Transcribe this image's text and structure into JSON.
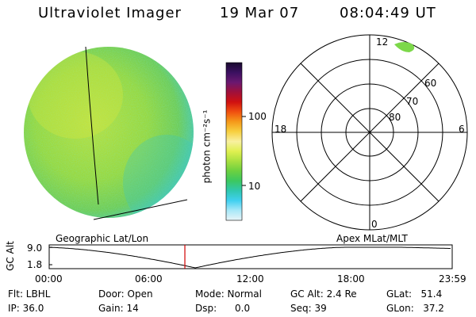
{
  "header": {
    "instrument": "Ultraviolet Imager",
    "date": "19 Mar 07",
    "time": "08:04:49 UT"
  },
  "colorbar": {
    "unit_label": "photon cm⁻²s⁻¹",
    "ticks": [
      {
        "label": "100",
        "value": 100
      },
      {
        "label": "10",
        "value": 10
      }
    ],
    "colors": [
      "#1a0a2e",
      "#3b1060",
      "#6a1870",
      "#a0103a",
      "#d01010",
      "#f05010",
      "#f59a1a",
      "#f7d040",
      "#f8f0a0",
      "#e0f050",
      "#a8e040",
      "#6cd040",
      "#3cc860",
      "#30c8b0",
      "#40d0f0",
      "#a8e8f8",
      "#e8f4f8"
    ]
  },
  "left_panel": {
    "label": "Geographic Lat/Lon"
  },
  "right_panel": {
    "label": "Apex MLat/MLT",
    "mlt_labels": [
      {
        "label": "12",
        "pos": "top"
      },
      {
        "label": "18",
        "pos": "left"
      },
      {
        "label": "6",
        "pos": "right"
      },
      {
        "label": "0",
        "pos": "bottom"
      }
    ],
    "lat_labels": [
      "60",
      "70",
      "80"
    ]
  },
  "timeline": {
    "y_axis_label": "GC Alt",
    "y_ticks": [
      "9.0",
      "1.8"
    ],
    "x_ticks": [
      "00:00",
      "06:00",
      "12:00",
      "18:00",
      "23:59"
    ],
    "current_time_hours": 8.08
  },
  "footer": {
    "flt": "Flt: LBHL",
    "ip": "IP: 36.0",
    "door": "Door: Open",
    "gain": "Gain: 14",
    "mode": "Mode: Normal",
    "dsp": "Dsp:      0.0",
    "gcalt": "GC Alt: 2.4 Re",
    "seq": "Seq: 39",
    "glat": "GLat:   51.4",
    "glon": "GLon:   37.2"
  },
  "colors": {
    "image_green": "#8ad240",
    "marker_red": "#d00000",
    "aurora_green": "#7cd84a"
  }
}
